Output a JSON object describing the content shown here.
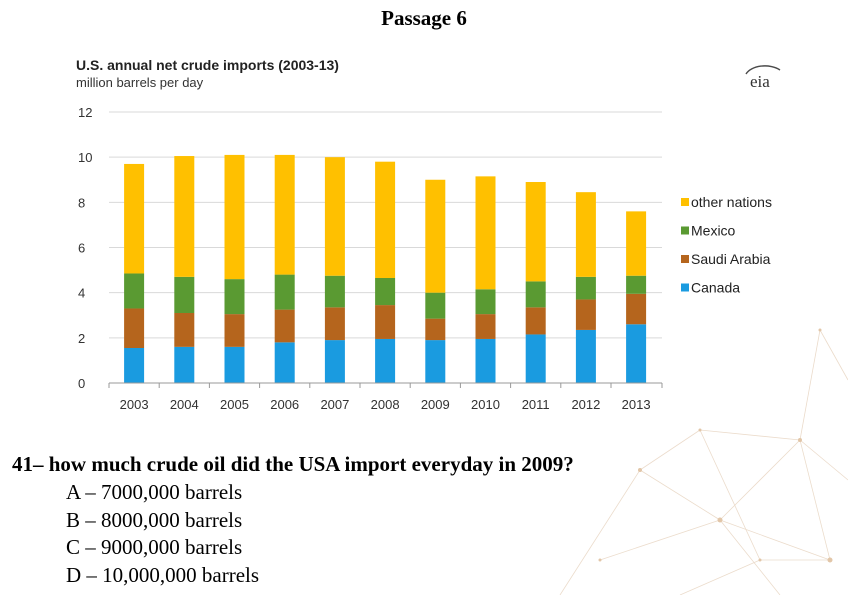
{
  "passage_title": "Passage 6",
  "chart_data": {
    "type": "bar",
    "stacked": true,
    "title": "U.S. annual net crude imports (2003-13)",
    "subtitle": "million barrels per day",
    "logo_text": "eia",
    "categories": [
      "2003",
      "2004",
      "2005",
      "2006",
      "2007",
      "2008",
      "2009",
      "2010",
      "2011",
      "2012",
      "2013"
    ],
    "series": [
      {
        "name": "Canada",
        "color": "#1a9be0",
        "values": [
          1.55,
          1.6,
          1.6,
          1.8,
          1.9,
          1.95,
          1.9,
          1.95,
          2.15,
          2.35,
          2.6
        ]
      },
      {
        "name": "Saudi Arabia",
        "color": "#b5651d",
        "values": [
          1.75,
          1.5,
          1.45,
          1.45,
          1.45,
          1.5,
          0.95,
          1.1,
          1.2,
          1.35,
          1.35
        ]
      },
      {
        "name": "Mexico",
        "color": "#5a9a32",
        "values": [
          1.55,
          1.6,
          1.55,
          1.55,
          1.4,
          1.2,
          1.15,
          1.1,
          1.15,
          1.0,
          0.8
        ]
      },
      {
        "name": "other nations",
        "color": "#ffc000",
        "values": [
          4.85,
          5.35,
          5.5,
          5.3,
          5.25,
          5.15,
          5.0,
          5.0,
          4.4,
          3.75,
          2.85
        ]
      }
    ],
    "legend_order": [
      "other nations",
      "Mexico",
      "Saudi Arabia",
      "Canada"
    ],
    "legend_position": "right",
    "ylim": [
      0,
      12
    ],
    "yticks": [
      0,
      2,
      4,
      6,
      8,
      10,
      12
    ],
    "grid": true
  },
  "question": {
    "text": "41– how much crude oil did the USA import everyday in 2009?",
    "options": [
      "A – 7000,000 barrels",
      "B – 8000,000 barrels",
      "C – 9000,000 barrels",
      "D – 10,000,000 barrels"
    ]
  }
}
